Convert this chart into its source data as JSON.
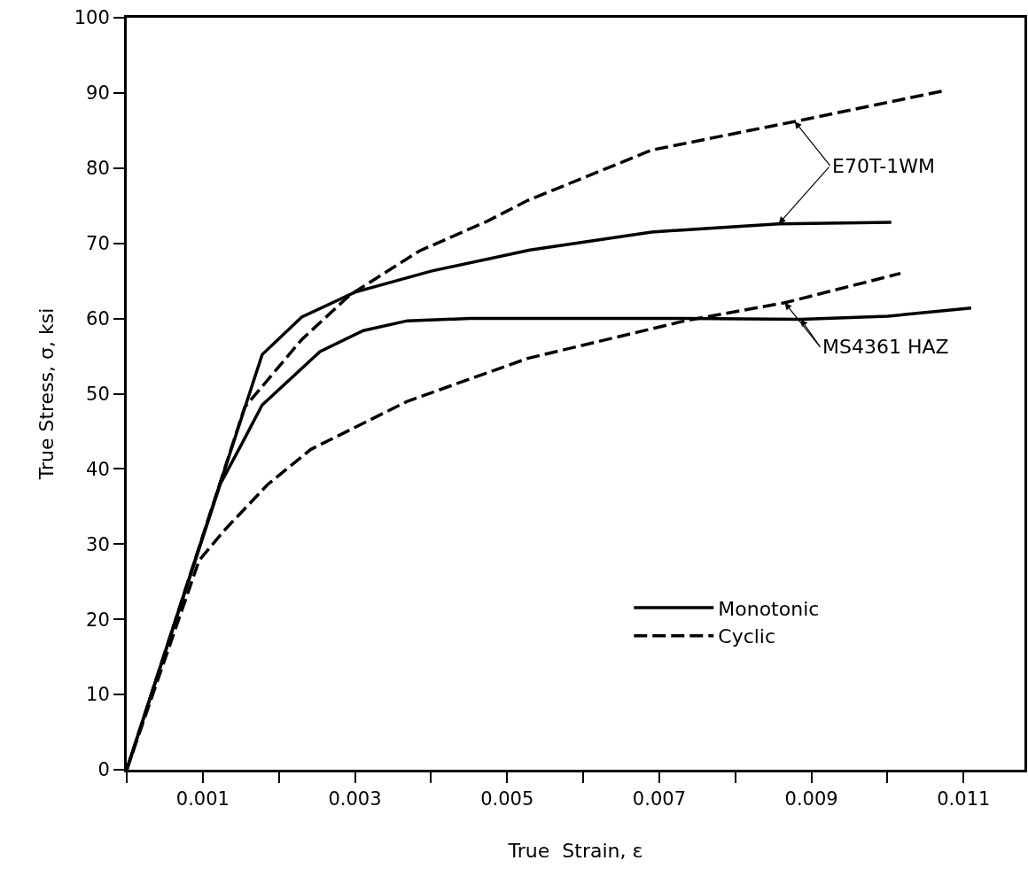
{
  "chart_data": {
    "type": "line",
    "xlabel": "True  Strain, ε",
    "ylabel": "True Stress, σ, ksi",
    "xlim": [
      0,
      0.0118
    ],
    "ylim": [
      0,
      100
    ],
    "xticks": [
      {
        "value": 0,
        "label": null
      },
      0.001,
      {
        "value": 0.002,
        "label": null
      },
      0.003,
      {
        "value": 0.004,
        "label": null
      },
      0.005,
      {
        "value": 0.006,
        "label": null
      },
      0.007,
      {
        "value": 0.008,
        "label": null
      },
      0.009,
      {
        "value": 0.01,
        "label": null
      },
      0.011
    ],
    "yticks": [
      0,
      10,
      20,
      30,
      40,
      50,
      60,
      70,
      80,
      90,
      100
    ],
    "grid": false,
    "legend": "bottom right",
    "series": [
      {
        "name": "Monotonic",
        "color": "#000000",
        "line_style": "solid",
        "x": [
          0,
          0.00178,
          0.0023,
          0.003,
          0.004,
          0.0053,
          0.0069,
          0.00857,
          0.01005
        ],
        "values": [
          0,
          55.2,
          60.2,
          63.5,
          66.3,
          69.1,
          71.5,
          72.6,
          72.8
        ]
      },
      {
        "name": "Cyclic",
        "color": "#000000",
        "line_style": "dashed",
        "x": [
          0,
          0.00155,
          0.0023,
          0.00293,
          0.00385,
          0.00473,
          0.00527,
          0.0069,
          0.00878,
          0.01075
        ],
        "values": [
          0,
          48.2,
          57.2,
          63.1,
          69,
          72.9,
          75.7,
          82.4,
          86.2,
          90.3
        ]
      },
      {
        "color": "#000000",
        "line_style": "solid",
        "x": [
          0,
          0.00123,
          0.0015,
          0.00178,
          0.00254,
          0.00311,
          0.00369,
          0.0045,
          0.00562,
          0.00734,
          0.00886,
          0.01,
          0.0111
        ],
        "values": [
          0,
          38,
          43.1,
          48.5,
          55.6,
          58.4,
          59.7,
          60,
          60,
          60,
          59.9,
          60.3,
          61.4
        ]
      },
      {
        "color": "#000000",
        "line_style": "dashed",
        "x": [
          0,
          0.00095,
          0.00127,
          0.00185,
          0.00242,
          0.00369,
          0.00527,
          0.00734,
          0.00865,
          0.01017
        ],
        "values": [
          0,
          27.8,
          31.7,
          37.9,
          42.6,
          49,
          54.7,
          59.7,
          62.1,
          66
        ]
      }
    ],
    "annotations": [
      {
        "text": "E70T-1WM",
        "x": 0.00878,
        "y": 86.2
      },
      {
        "text": "MS4361 HAZ",
        "x": 0.00865,
        "y": 62.1
      }
    ]
  }
}
